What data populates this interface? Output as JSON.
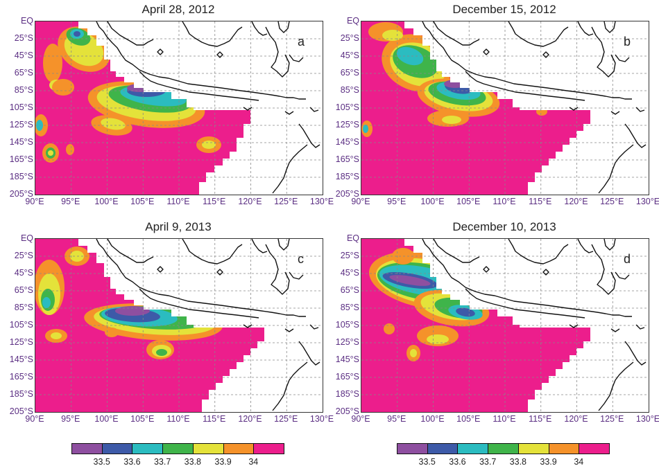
{
  "colors": {
    "c335": "#8e4fa0",
    "c336": "#3d5aa8",
    "c337": "#2bbcc0",
    "c338": "#3fb44a",
    "c339": "#e4e23a",
    "c34": "#f5922a",
    "cmax": "#ec1e8c",
    "coast": "#111111"
  },
  "y_axis_labels": [
    "EQ",
    "25°S",
    "45°S",
    "65°S",
    "85°S",
    "105°S",
    "125°S",
    "145°S",
    "165°S",
    "185°S",
    "205°S"
  ],
  "x_axis_labels": [
    "90°E",
    "95°E",
    "100°E",
    "105°E",
    "110°E",
    "115°E",
    "120°E",
    "125°E",
    "130°E"
  ],
  "panels": [
    {
      "title": "April 28, 2012",
      "letter": "a"
    },
    {
      "title": "December 15, 2012",
      "letter": "b"
    },
    {
      "title": "April 9, 2013",
      "letter": "c"
    },
    {
      "title": "December 10, 2013",
      "letter": "d"
    }
  ],
  "colorbar": {
    "ticks": [
      "33.5",
      "33.6",
      "33.7",
      "33.8",
      "33.9",
      "34"
    ],
    "bins": [
      "c335",
      "c336",
      "c337",
      "c338",
      "c339",
      "c34",
      "cmax"
    ]
  }
}
